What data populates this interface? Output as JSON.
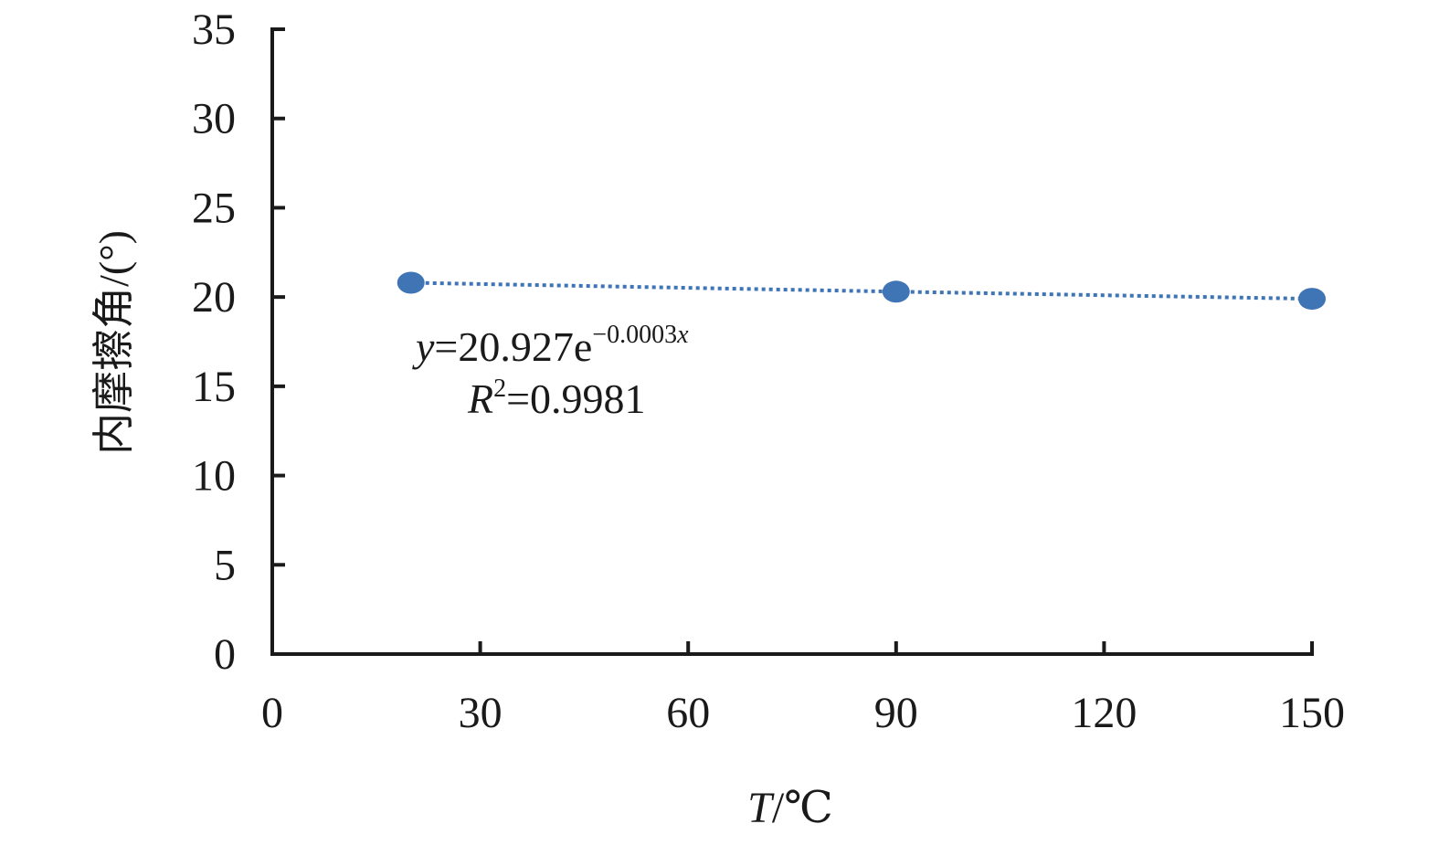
{
  "chart_data": {
    "type": "scatter",
    "xlabel_italic": "T",
    "xlabel_unit": "/℃",
    "ylabel": "内摩擦角/(°)",
    "xlim": [
      0,
      150
    ],
    "ylim": [
      0,
      35
    ],
    "xticks": [
      0,
      30,
      60,
      90,
      120,
      150
    ],
    "yticks": [
      0,
      5,
      10,
      15,
      20,
      25,
      30,
      35
    ],
    "grid": false,
    "color": "#3f74b5",
    "points": [
      {
        "x": 20,
        "y": 20.8
      },
      {
        "x": 90,
        "y": 20.3
      },
      {
        "x": 150,
        "y": 19.9
      }
    ],
    "trendline": {
      "style": "dotted",
      "equation_y": "y",
      "equation_rest": "=20.927e",
      "equation_exp": "−0.0003",
      "equation_exp_var": "x",
      "r2_label": "R",
      "r2_sup": "2",
      "r2_value": "=0.9981"
    }
  }
}
